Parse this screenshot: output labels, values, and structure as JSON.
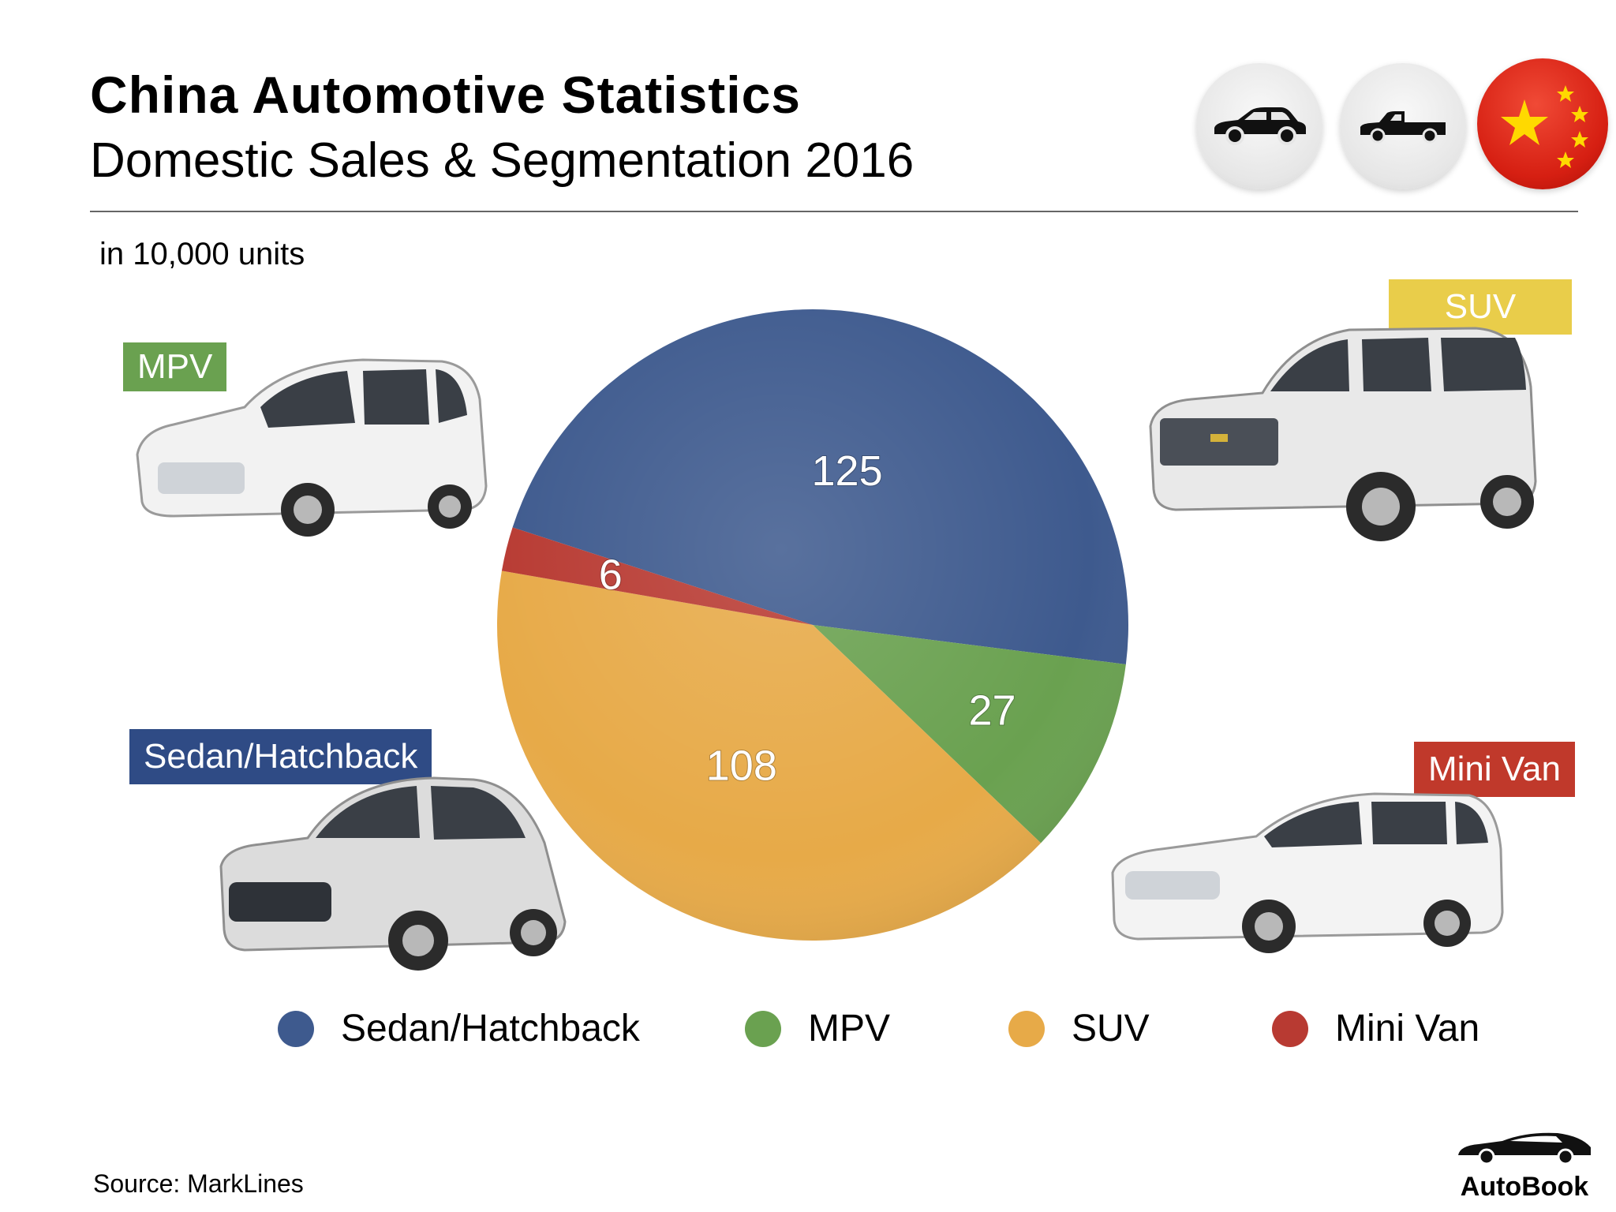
{
  "header": {
    "title": "China Automotive Statistics",
    "subtitle": "Domestic Sales & Segmentation 2016",
    "units_note": "in 10,000 units"
  },
  "badges": [
    "sedan-icon",
    "pickup-icon",
    "china-flag-icon"
  ],
  "segment_labels": {
    "mpv": "MPV",
    "suv": "SUV",
    "sedan": "Sedan/Hatchback",
    "minivan": "Mini Van"
  },
  "colors": {
    "sedan": "#3e5a8e",
    "mpv": "#6aa150",
    "suv": "#e7aa48",
    "minivan": "#b83a32"
  },
  "chart_data": {
    "type": "pie",
    "units": "in 10,000 units",
    "title": "China Automotive Statistics",
    "subtitle": "Domestic Sales & Segmentation 2016",
    "slices": [
      {
        "name": "Sedan/Hatchback",
        "value": 125,
        "color": "#3e5a8e"
      },
      {
        "name": "MPV",
        "value": 27,
        "color": "#6aa150"
      },
      {
        "name": "SUV",
        "value": 108,
        "color": "#e7aa48"
      },
      {
        "name": "Mini Van",
        "value": 6,
        "color": "#b83a32"
      }
    ],
    "legend": [
      "Sedan/Hatchback",
      "MPV",
      "SUV",
      "Mini Van"
    ],
    "legend_position": "bottom"
  },
  "footer": {
    "source": "Source:  MarkLines",
    "brand": "AutoBook"
  }
}
